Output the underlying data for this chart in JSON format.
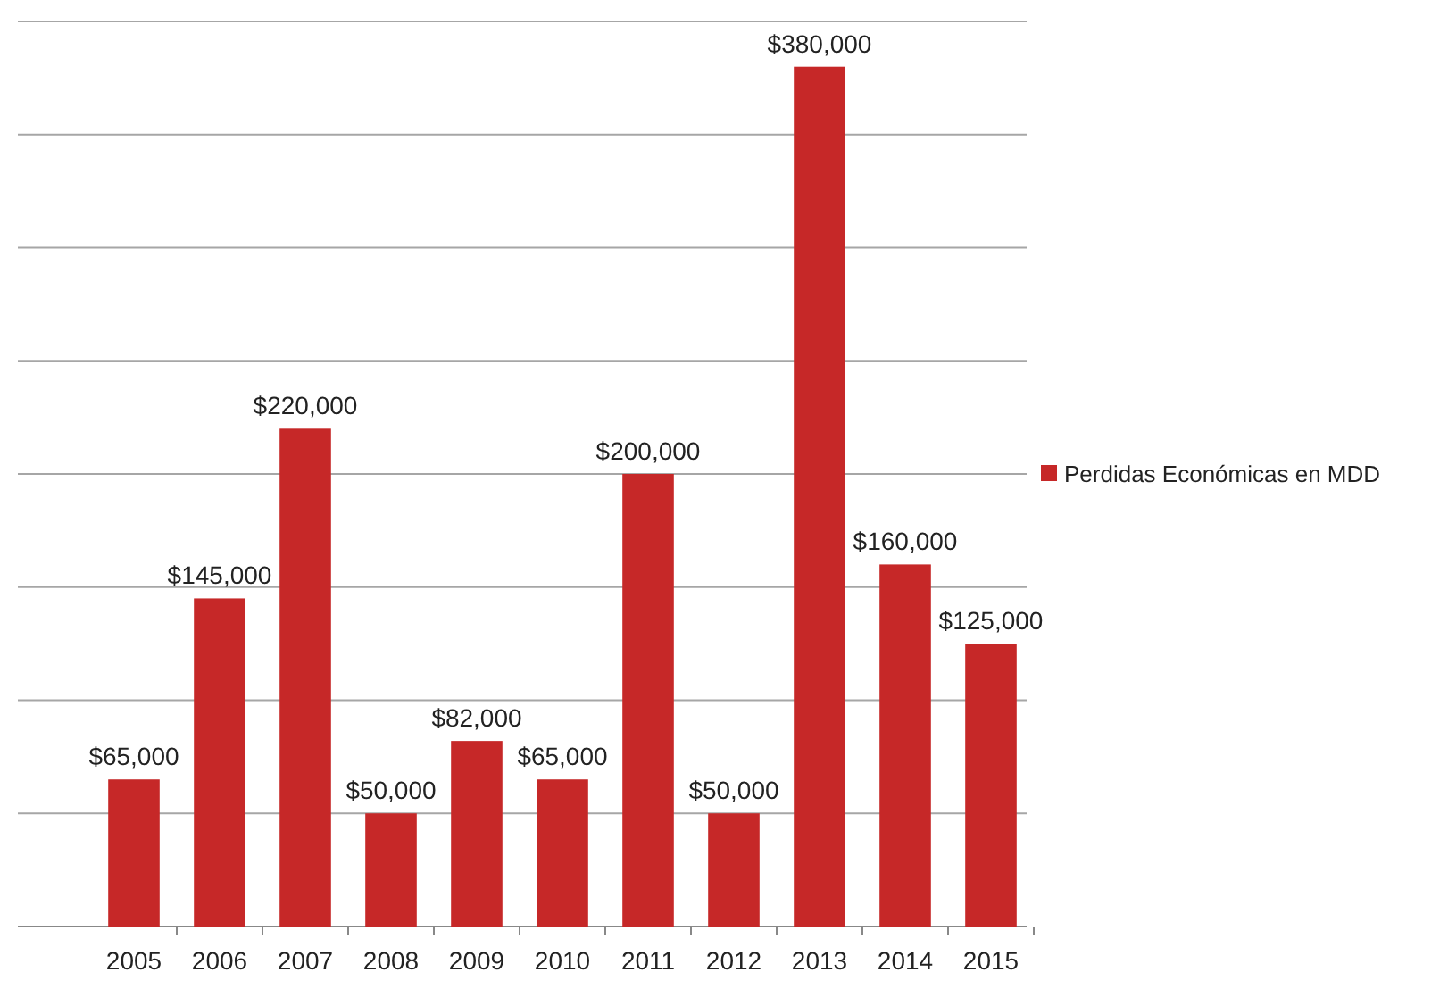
{
  "chart_data": {
    "type": "bar",
    "categories": [
      "2005",
      "2006",
      "2007",
      "2008",
      "2009",
      "2010",
      "2011",
      "2012",
      "2013",
      "2014",
      "2015"
    ],
    "series": [
      {
        "name": "Perdidas Económicas en MDD",
        "color": "#c62828",
        "values": [
          65000,
          145000,
          220000,
          50000,
          82000,
          65000,
          200000,
          50000,
          380000,
          160000,
          125000
        ],
        "value_labels": [
          "$65,000",
          "$145,000",
          "$220,000",
          "$50,000",
          "$82,000",
          "$65,000",
          "$200,000",
          "$50,000",
          "$380,000",
          "$160,000",
          "$125,000"
        ]
      }
    ],
    "ylim": [
      0,
      400000
    ],
    "yticks": [
      {
        "value": 0,
        "label": null
      },
      {
        "value": 50000,
        "label": null
      },
      {
        "value": 100000,
        "label": null
      },
      {
        "value": 150000,
        "label": null
      },
      {
        "value": 200000,
        "label": null
      },
      {
        "value": 250000,
        "label": null
      },
      {
        "value": 300000,
        "label": null
      },
      {
        "value": 350000,
        "label": null
      },
      {
        "value": 400000,
        "label": null
      }
    ],
    "tick_labels": "x",
    "grid": "y",
    "legend": "right"
  }
}
